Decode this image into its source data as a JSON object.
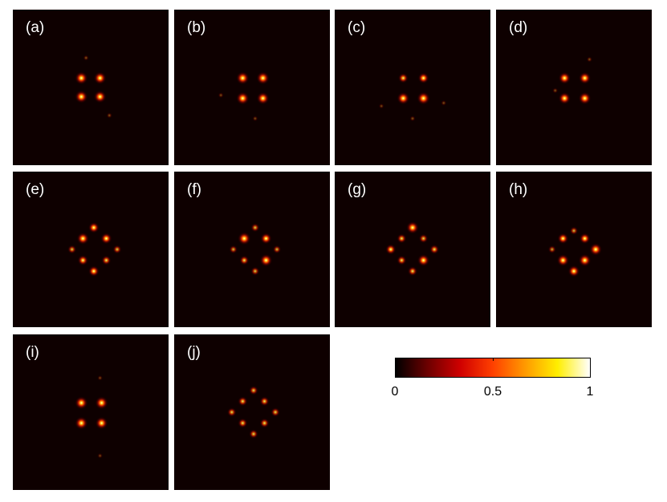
{
  "figure": {
    "panels": [
      {
        "id": "a",
        "label": "(a)",
        "spots": [
          [
            0.44,
            0.44,
            1.0
          ],
          [
            0.56,
            0.44,
            0.95
          ],
          [
            0.44,
            0.56,
            1.0
          ],
          [
            0.56,
            0.56,
            0.95
          ],
          [
            0.47,
            0.31,
            0.12
          ],
          [
            0.62,
            0.68,
            0.12
          ]
        ]
      },
      {
        "id": "b",
        "label": "(b)",
        "spots": [
          [
            0.44,
            0.44,
            1.0
          ],
          [
            0.57,
            0.44,
            1.0
          ],
          [
            0.44,
            0.57,
            1.0
          ],
          [
            0.57,
            0.57,
            0.95
          ],
          [
            0.52,
            0.7,
            0.1
          ],
          [
            0.3,
            0.55,
            0.1
          ]
        ]
      },
      {
        "id": "c",
        "label": "(c)",
        "spots": [
          [
            0.44,
            0.44,
            0.65
          ],
          [
            0.57,
            0.44,
            0.75
          ],
          [
            0.44,
            0.57,
            0.95
          ],
          [
            0.57,
            0.57,
            1.0
          ],
          [
            0.5,
            0.7,
            0.12
          ],
          [
            0.7,
            0.6,
            0.1
          ],
          [
            0.3,
            0.62,
            0.08
          ]
        ]
      },
      {
        "id": "d",
        "label": "(d)",
        "spots": [
          [
            0.44,
            0.44,
            0.9
          ],
          [
            0.57,
            0.44,
            0.9
          ],
          [
            0.44,
            0.57,
            0.9
          ],
          [
            0.57,
            0.57,
            0.95
          ],
          [
            0.6,
            0.32,
            0.12
          ],
          [
            0.38,
            0.52,
            0.12
          ]
        ]
      },
      {
        "id": "e",
        "label": "(e)",
        "spots": [
          [
            0.52,
            0.36,
            0.75
          ],
          [
            0.45,
            0.43,
            0.9
          ],
          [
            0.6,
            0.43,
            0.8
          ],
          [
            0.38,
            0.5,
            0.5
          ],
          [
            0.67,
            0.5,
            0.5
          ],
          [
            0.45,
            0.57,
            0.7
          ],
          [
            0.6,
            0.57,
            0.6
          ],
          [
            0.52,
            0.64,
            0.75
          ]
        ]
      },
      {
        "id": "f",
        "label": "(f)",
        "spots": [
          [
            0.52,
            0.36,
            0.5
          ],
          [
            0.45,
            0.43,
            1.0
          ],
          [
            0.59,
            0.43,
            0.8
          ],
          [
            0.38,
            0.5,
            0.45
          ],
          [
            0.66,
            0.5,
            0.45
          ],
          [
            0.45,
            0.57,
            0.6
          ],
          [
            0.59,
            0.57,
            0.95
          ],
          [
            0.52,
            0.64,
            0.5
          ]
        ]
      },
      {
        "id": "g",
        "label": "(g)",
        "spots": [
          [
            0.5,
            0.36,
            0.95
          ],
          [
            0.43,
            0.43,
            0.6
          ],
          [
            0.57,
            0.43,
            0.55
          ],
          [
            0.36,
            0.5,
            0.7
          ],
          [
            0.64,
            0.5,
            0.6
          ],
          [
            0.43,
            0.57,
            0.6
          ],
          [
            0.57,
            0.57,
            0.9
          ],
          [
            0.5,
            0.64,
            0.6
          ]
        ]
      },
      {
        "id": "h",
        "label": "(h)",
        "spots": [
          [
            0.5,
            0.38,
            0.45
          ],
          [
            0.43,
            0.43,
            0.75
          ],
          [
            0.57,
            0.43,
            0.75
          ],
          [
            0.36,
            0.5,
            0.4
          ],
          [
            0.64,
            0.5,
            0.95
          ],
          [
            0.43,
            0.57,
            0.9
          ],
          [
            0.57,
            0.57,
            0.95
          ],
          [
            0.5,
            0.64,
            0.85
          ]
        ]
      },
      {
        "id": "i",
        "label": "(i)",
        "spots": [
          [
            0.44,
            0.44,
            1.0
          ],
          [
            0.57,
            0.44,
            1.0
          ],
          [
            0.44,
            0.57,
            1.0
          ],
          [
            0.57,
            0.57,
            0.95
          ],
          [
            0.56,
            0.28,
            0.08
          ],
          [
            0.56,
            0.78,
            0.08
          ]
        ]
      },
      {
        "id": "j",
        "label": "(j)",
        "spots": [
          [
            0.51,
            0.36,
            0.55
          ],
          [
            0.44,
            0.43,
            0.6
          ],
          [
            0.58,
            0.43,
            0.6
          ],
          [
            0.37,
            0.5,
            0.55
          ],
          [
            0.65,
            0.5,
            0.55
          ],
          [
            0.44,
            0.57,
            0.6
          ],
          [
            0.58,
            0.57,
            0.6
          ],
          [
            0.51,
            0.64,
            0.55
          ]
        ]
      }
    ],
    "colorbar": {
      "ticks": [
        {
          "value": 0,
          "label": "0"
        },
        {
          "value": 0.5,
          "label": "0.5"
        },
        {
          "value": 1,
          "label": "1"
        }
      ],
      "colors": [
        "#000000",
        "#6e0000",
        "#d00000",
        "#ff4000",
        "#ff9a00",
        "#ffee00",
        "#ffffff"
      ]
    }
  }
}
